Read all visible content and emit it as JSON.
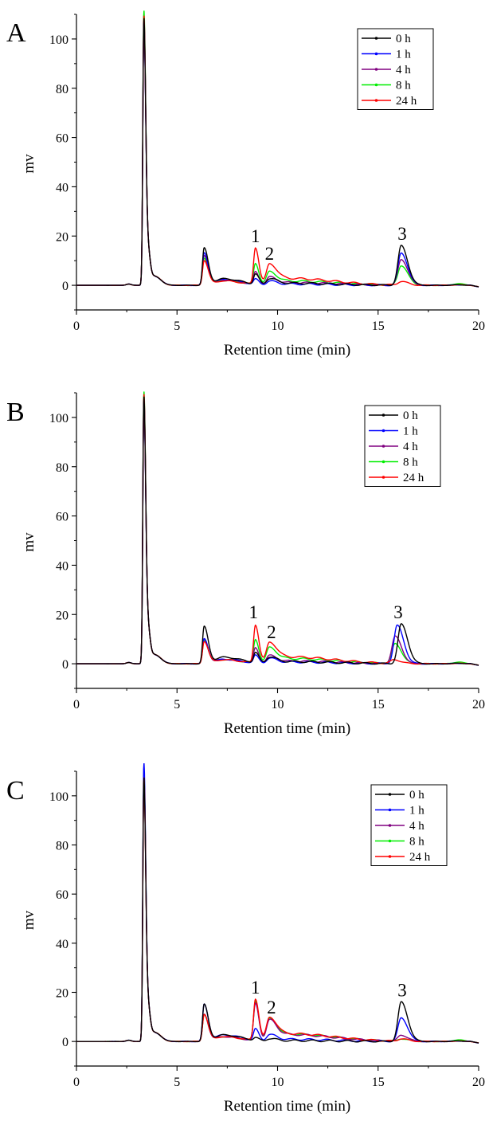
{
  "chart_data": [
    {
      "type": "line",
      "panel_label": "A",
      "xlabel": "Retention time (min)",
      "ylabel": "mv",
      "xlim": [
        0,
        20
      ],
      "ylim": [
        -10,
        110
      ],
      "xticks": [
        0,
        5,
        10,
        15,
        20
      ],
      "yticks": [
        0,
        20,
        40,
        60,
        80,
        100
      ],
      "grid": false,
      "legend_position": "top-right",
      "peak_labels": [
        {
          "text": "1",
          "x": 8.9,
          "y": 15.5
        },
        {
          "text": "2",
          "x": 9.6,
          "y": 8.5
        },
        {
          "text": "3",
          "x": 16.2,
          "y": 16.5
        }
      ],
      "series": [
        {
          "name": "0 h",
          "color": "#000000",
          "peaks": {
            "solvent": 105,
            "p1": 15,
            "peak_a": 4,
            "peak_b": 2.5,
            "peak_3": 16
          }
        },
        {
          "name": "1 h",
          "color": "#0000ff",
          "peaks": {
            "solvent": 104,
            "p1": 13,
            "peak_a": 2,
            "peak_b": 1.5,
            "peak_3": 13
          }
        },
        {
          "name": "4 h",
          "color": "#800080",
          "peaks": {
            "solvent": 103,
            "p1": 12,
            "peak_a": 5,
            "peak_b": 3,
            "peak_3": 10.5
          }
        },
        {
          "name": "8 h",
          "color": "#00ee00",
          "peaks": {
            "solvent": 108,
            "p1": 11,
            "peak_a": 8.5,
            "peak_b": 5,
            "peak_3": 8
          }
        },
        {
          "name": "24 h",
          "color": "#ff0000",
          "peaks": {
            "solvent": 106,
            "p1": 10,
            "peak_a": 15,
            "peak_b": 8,
            "peak_3": 1.5
          }
        }
      ]
    },
    {
      "type": "line",
      "panel_label": "B",
      "xlabel": "Retention time (min)",
      "ylabel": "mv",
      "xlim": [
        0,
        20
      ],
      "ylim": [
        -10,
        110
      ],
      "xticks": [
        0,
        5,
        10,
        15,
        20
      ],
      "yticks": [
        0,
        20,
        40,
        60,
        80,
        100
      ],
      "grid": false,
      "legend_position": "top-right",
      "peak_labels": [
        {
          "text": "1",
          "x": 8.8,
          "y": 16.5
        },
        {
          "text": "2",
          "x": 9.7,
          "y": 8.5
        },
        {
          "text": "3",
          "x": 16.0,
          "y": 16.5
        }
      ],
      "series": [
        {
          "name": "0 h",
          "color": "#000000",
          "peaks": {
            "solvent": 105,
            "p1": 15,
            "peak_a": 4,
            "peak_b": 2.5,
            "peak_3": 16,
            "peak_3_rt": 16.15
          }
        },
        {
          "name": "1 h",
          "color": "#0000ff",
          "peaks": {
            "solvent": 104,
            "p1": 10,
            "peak_a": 3,
            "peak_b": 2,
            "peak_3": 15.5,
            "peak_3_rt": 15.95
          }
        },
        {
          "name": "4 h",
          "color": "#800080",
          "peaks": {
            "solvent": 103,
            "p1": 10,
            "peak_a": 6,
            "peak_b": 3,
            "peak_3": 11,
            "peak_3_rt": 15.85
          }
        },
        {
          "name": "8 h",
          "color": "#00ee00",
          "peaks": {
            "solvent": 107,
            "p1": 9.5,
            "peak_a": 9.5,
            "peak_b": 6,
            "peak_3": 8,
            "peak_3_rt": 15.85
          }
        },
        {
          "name": "24 h",
          "color": "#ff0000",
          "peaks": {
            "solvent": 106,
            "p1": 9,
            "peak_a": 15.5,
            "peak_b": 8,
            "peak_3": 1.5,
            "peak_3_rt": 15.8
          }
        }
      ]
    },
    {
      "type": "line",
      "panel_label": "C",
      "xlabel": "Retention time (min)",
      "ylabel": "mv",
      "xlim": [
        0,
        20
      ],
      "ylim": [
        -10,
        110
      ],
      "xticks": [
        0,
        5,
        10,
        15,
        20
      ],
      "yticks": [
        0,
        20,
        40,
        60,
        80,
        100
      ],
      "grid": false,
      "legend_position": "top-right",
      "peak_labels": [
        {
          "text": "1",
          "x": 8.9,
          "y": 17.5
        },
        {
          "text": "2",
          "x": 9.7,
          "y": 9.5
        },
        {
          "text": "3",
          "x": 16.2,
          "y": 16.5
        }
      ],
      "series": [
        {
          "name": "0 h",
          "color": "#000000",
          "peaks": {
            "solvent": 104,
            "p1": 15,
            "peak_a": 1,
            "peak_b": 1,
            "peak_3": 16
          }
        },
        {
          "name": "1 h",
          "color": "#0000ff",
          "peaks": {
            "solvent": 110,
            "p1": 15,
            "peak_a": 4.5,
            "peak_b": 2.5,
            "peak_3": 9.5
          }
        },
        {
          "name": "4 h",
          "color": "#800080",
          "peaks": {
            "solvent": 105,
            "p1": 11,
            "peak_a": 15,
            "peak_b": 8,
            "peak_3": 2.5
          }
        },
        {
          "name": "8 h",
          "color": "#00ee00",
          "peaks": {
            "solvent": 107,
            "p1": 11,
            "peak_a": 16,
            "peak_b": 8.5,
            "peak_3": 1
          }
        },
        {
          "name": "24 h",
          "color": "#ff0000",
          "peaks": {
            "solvent": 104,
            "p1": 11,
            "peak_a": 17,
            "peak_b": 9,
            "peak_3": 1
          }
        }
      ]
    }
  ]
}
